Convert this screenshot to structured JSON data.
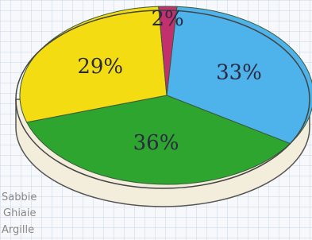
{
  "chart_data": {
    "type": "pie",
    "categories": [
      "",
      "",
      "",
      ""
    ],
    "values": [
      33,
      36,
      29,
      2
    ],
    "value_labels": [
      "33%",
      "36%",
      "29%",
      "2%"
    ],
    "colors": [
      "#4db3ea",
      "#2da52f",
      "#f4dc12",
      "#c2306e"
    ],
    "legend": [
      "Sabbie",
      "Ghiaie",
      "Argille"
    ]
  }
}
